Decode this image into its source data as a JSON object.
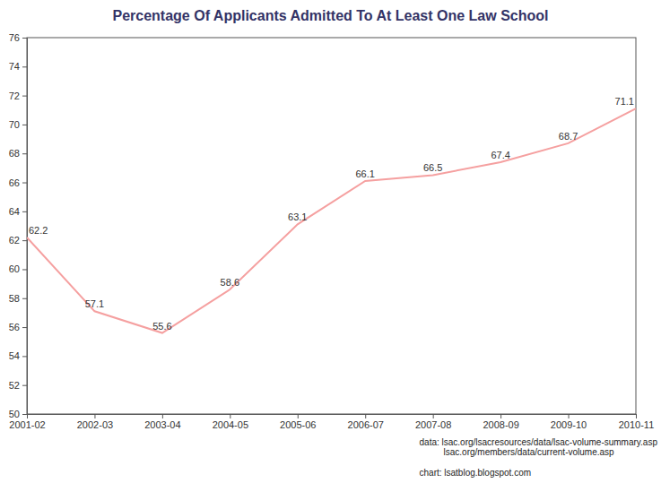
{
  "chart_data": {
    "type": "line",
    "title": "Percentage Of Applicants Admitted To At Least One Law School",
    "categories": [
      "2001-02",
      "2002-03",
      "2003-04",
      "2004-05",
      "2005-06",
      "2006-07",
      "2007-08",
      "2008-09",
      "2009-10",
      "2010-11"
    ],
    "values": [
      62.2,
      57.1,
      55.6,
      58.6,
      63.1,
      66.1,
      66.5,
      67.4,
      68.7,
      71.1
    ],
    "color": "#f5a0a0",
    "ylim": [
      50,
      76
    ],
    "yticks": [
      50,
      52,
      54,
      56,
      58,
      60,
      62,
      64,
      66,
      68,
      70,
      72,
      74,
      76
    ],
    "grid": false,
    "data_labels": true,
    "annotations": [
      "data: lsac.org/lsacresources/data/lsac-volume-summary.asp",
      "lsac.org/members/data/current-volume.asp",
      "chart: lsatblog.blogspot.com"
    ]
  }
}
